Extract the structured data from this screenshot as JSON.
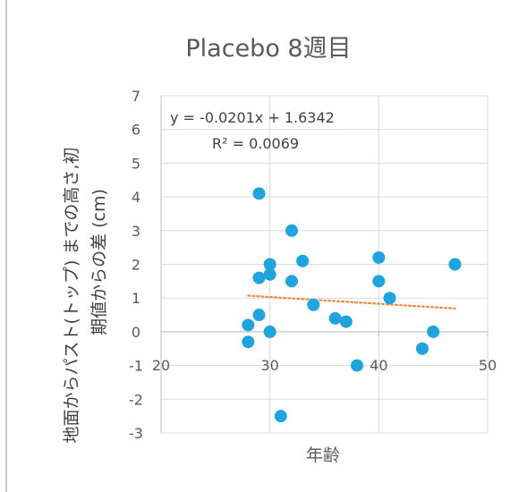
{
  "chart_data": {
    "type": "scatter",
    "title": "Placebo 8週目",
    "xlabel": "年齢",
    "ylabel_lines": [
      "地面からパスト(トップ) までの高さ,初",
      "期値からの差 (cm)"
    ],
    "xlim": [
      20,
      50
    ],
    "ylim": [
      -3,
      7
    ],
    "x_ticks": [
      "20",
      "30",
      "40",
      "50"
    ],
    "y_ticks": [
      "-3",
      "-2",
      "-1",
      "0",
      "1",
      "2",
      "3",
      "4",
      "5",
      "6",
      "7"
    ],
    "grid": true,
    "marker_color": "#1fa4dd",
    "trendline": {
      "type": "linear",
      "slope": -0.0201,
      "intercept": 1.6342,
      "x_range": [
        28,
        47
      ],
      "color": "#ee8a3c",
      "style": "dotted",
      "equation": "y = -0.0201x + 1.6342",
      "r_squared": "R² = 0.0069"
    },
    "points": [
      {
        "x": 28,
        "y": 0.2
      },
      {
        "x": 28,
        "y": -0.3
      },
      {
        "x": 29,
        "y": 4.1
      },
      {
        "x": 29,
        "y": 1.6
      },
      {
        "x": 29,
        "y": 0.5
      },
      {
        "x": 30,
        "y": 2.0
      },
      {
        "x": 30,
        "y": 1.7
      },
      {
        "x": 30,
        "y": 0.0
      },
      {
        "x": 31,
        "y": -2.5
      },
      {
        "x": 32,
        "y": 3.0
      },
      {
        "x": 32,
        "y": 1.5
      },
      {
        "x": 33,
        "y": 2.1
      },
      {
        "x": 34,
        "y": 0.8
      },
      {
        "x": 36,
        "y": 0.4
      },
      {
        "x": 37,
        "y": 0.3
      },
      {
        "x": 38,
        "y": -1.0
      },
      {
        "x": 40,
        "y": 2.2
      },
      {
        "x": 40,
        "y": 1.5
      },
      {
        "x": 41,
        "y": 1.0
      },
      {
        "x": 44,
        "y": -0.5
      },
      {
        "x": 45,
        "y": 0.0
      },
      {
        "x": 47,
        "y": 2.0
      }
    ]
  }
}
